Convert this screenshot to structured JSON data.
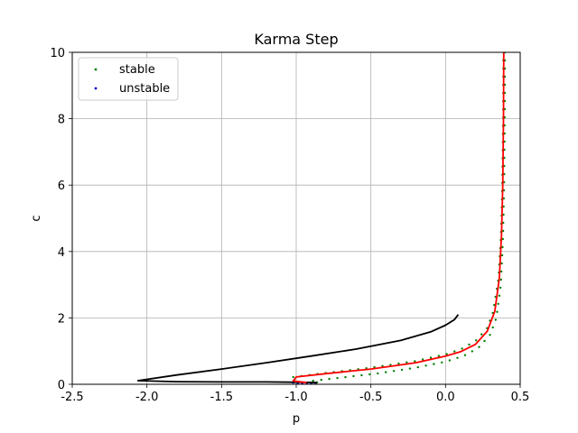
{
  "chart_data": {
    "type": "scatter",
    "title": "Karma Step",
    "xlabel": "p",
    "ylabel": "c",
    "xlim": [
      -2.5,
      0.5
    ],
    "ylim": [
      0,
      10
    ],
    "xticks": [
      "-2.5",
      "-2.0",
      "-1.5",
      "-1.0",
      "-0.5",
      "0.0",
      "0.5"
    ],
    "yticks": [
      "0",
      "2",
      "4",
      "6",
      "8",
      "10"
    ],
    "grid": true,
    "legend_position": "top-left",
    "legend": [
      {
        "label": "stable",
        "color": "#008000"
      },
      {
        "label": "unstable",
        "color": "#0000cc"
      }
    ],
    "lines": [
      {
        "color": "#000000",
        "points": [
          [
            -0.86,
            0.05
          ],
          [
            -0.95,
            0.06
          ],
          [
            -1.2,
            0.07
          ],
          [
            -1.5,
            0.07
          ],
          [
            -1.8,
            0.08
          ],
          [
            -2.06,
            0.11
          ],
          [
            -1.8,
            0.28
          ],
          [
            -1.5,
            0.46
          ],
          [
            -1.2,
            0.65
          ],
          [
            -0.9,
            0.85
          ],
          [
            -0.6,
            1.06
          ],
          [
            -0.3,
            1.32
          ],
          [
            -0.1,
            1.58
          ],
          [
            0.0,
            1.78
          ],
          [
            0.06,
            1.95
          ],
          [
            0.085,
            2.1
          ]
        ]
      },
      {
        "color": "#ff0000",
        "points": [
          [
            -0.93,
            0.05
          ],
          [
            -1.02,
            0.1
          ],
          [
            -1.0,
            0.22
          ],
          [
            -0.8,
            0.32
          ],
          [
            -0.5,
            0.46
          ],
          [
            -0.2,
            0.65
          ],
          [
            0.0,
            0.85
          ],
          [
            0.1,
            0.98
          ],
          [
            0.2,
            1.2
          ],
          [
            0.28,
            1.6
          ],
          [
            0.33,
            2.2
          ],
          [
            0.36,
            3.2
          ],
          [
            0.375,
            4.5
          ],
          [
            0.383,
            6.0
          ],
          [
            0.388,
            8.0
          ],
          [
            0.39,
            10.0
          ]
        ]
      }
    ],
    "series": [
      {
        "name": "stable",
        "color": "#008000",
        "upper": [
          [
            -1.02,
            0.22
          ],
          [
            -0.8,
            0.34
          ],
          [
            -0.5,
            0.5
          ],
          [
            -0.2,
            0.7
          ],
          [
            0.0,
            0.9
          ],
          [
            0.1,
            1.05
          ],
          [
            0.2,
            1.3
          ],
          [
            0.28,
            1.7
          ],
          [
            0.32,
            2.2
          ],
          [
            0.355,
            3.2
          ],
          [
            0.372,
            4.5
          ],
          [
            0.38,
            6.0
          ],
          [
            0.386,
            8.0
          ],
          [
            0.388,
            10.0
          ]
        ],
        "lower": [
          [
            -0.86,
            0.06
          ],
          [
            -0.9,
            0.1
          ],
          [
            -0.7,
            0.2
          ],
          [
            -0.45,
            0.33
          ],
          [
            -0.2,
            0.5
          ],
          [
            0.0,
            0.68
          ],
          [
            0.12,
            0.85
          ],
          [
            0.22,
            1.1
          ],
          [
            0.3,
            1.5
          ],
          [
            0.34,
            2.0
          ],
          [
            0.37,
            3.0
          ],
          [
            0.385,
            4.5
          ],
          [
            0.392,
            6.0
          ],
          [
            0.396,
            8.0
          ],
          [
            0.398,
            10.0
          ]
        ],
        "count": 60
      },
      {
        "name": "unstable",
        "color": "#0000cc",
        "points": [
          [
            -1.02,
            0.05
          ],
          [
            -0.99,
            0.03
          ],
          [
            -0.96,
            0.02
          ],
          [
            -0.93,
            0.01
          ],
          [
            -0.9,
            0.01
          ],
          [
            -0.87,
            0.0
          ]
        ]
      }
    ]
  }
}
